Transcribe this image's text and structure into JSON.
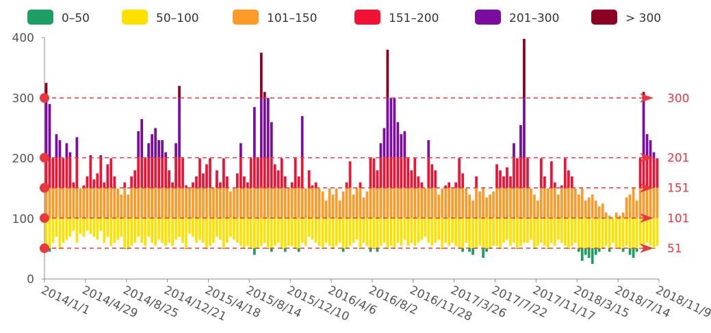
{
  "chart_data": {
    "type": "floating-bar",
    "legend": [
      {
        "name": "0–50",
        "color": "#1e9e62"
      },
      {
        "name": "50–100",
        "color": "#ffe100"
      },
      {
        "name": "101–150",
        "color": "#fe9a28"
      },
      {
        "name": "151–200",
        "color": "#ef1234"
      },
      {
        "name": "201–300",
        "color": "#7a0ca0"
      },
      {
        "name": "> 300",
        "color": "#8b0022"
      }
    ],
    "ref_lines": [
      51,
      101,
      151,
      201,
      300
    ],
    "ref_color": "#e8383d",
    "ylim": [
      0,
      400
    ],
    "yticks": [
      0,
      100,
      200,
      300,
      400
    ],
    "xticks": [
      "2014/1/1",
      "2014/4/29",
      "2014/8/25",
      "2014/12/21",
      "2015/4/18",
      "2015/8/14",
      "2015/12/10",
      "2016/4/6",
      "2016/8/2",
      "2016/11/28",
      "2017/3/26",
      "2017/7/22",
      "2017/11/17",
      "2018/3/15",
      "2018/7/14",
      "2018/11/9"
    ],
    "ranges": [
      [
        55,
        325
      ],
      [
        45,
        290
      ],
      [
        60,
        200
      ],
      [
        70,
        240
      ],
      [
        50,
        230
      ],
      [
        60,
        200
      ],
      [
        65,
        225
      ],
      [
        70,
        210
      ],
      [
        80,
        160
      ],
      [
        60,
        235
      ],
      [
        75,
        150
      ],
      [
        70,
        155
      ],
      [
        80,
        170
      ],
      [
        75,
        205
      ],
      [
        70,
        165
      ],
      [
        65,
        175
      ],
      [
        80,
        205
      ],
      [
        60,
        160
      ],
      [
        70,
        190
      ],
      [
        55,
        200
      ],
      [
        60,
        170
      ],
      [
        65,
        150
      ],
      [
        70,
        140
      ],
      [
        50,
        160
      ],
      [
        50,
        140
      ],
      [
        55,
        170
      ],
      [
        60,
        180
      ],
      [
        70,
        245
      ],
      [
        60,
        265
      ],
      [
        55,
        200
      ],
      [
        70,
        225
      ],
      [
        60,
        240
      ],
      [
        55,
        250
      ],
      [
        65,
        230
      ],
      [
        60,
        230
      ],
      [
        55,
        210
      ],
      [
        60,
        180
      ],
      [
        55,
        160
      ],
      [
        65,
        225
      ],
      [
        70,
        320
      ],
      [
        60,
        200
      ],
      [
        50,
        155
      ],
      [
        75,
        150
      ],
      [
        70,
        160
      ],
      [
        60,
        170
      ],
      [
        65,
        200
      ],
      [
        60,
        175
      ],
      [
        50,
        190
      ],
      [
        55,
        200
      ],
      [
        60,
        150
      ],
      [
        70,
        180
      ],
      [
        65,
        160
      ],
      [
        50,
        200
      ],
      [
        60,
        170
      ],
      [
        70,
        145
      ],
      [
        65,
        150
      ],
      [
        60,
        175
      ],
      [
        55,
        225
      ],
      [
        50,
        170
      ],
      [
        55,
        160
      ],
      [
        50,
        200
      ],
      [
        40,
        285
      ],
      [
        50,
        200
      ],
      [
        55,
        375
      ],
      [
        60,
        310
      ],
      [
        50,
        300
      ],
      [
        45,
        260
      ],
      [
        55,
        190
      ],
      [
        60,
        180
      ],
      [
        50,
        200
      ],
      [
        45,
        170
      ],
      [
        55,
        150
      ],
      [
        55,
        160
      ],
      [
        50,
        200
      ],
      [
        45,
        170
      ],
      [
        60,
        270
      ],
      [
        55,
        150
      ],
      [
        70,
        180
      ],
      [
        65,
        155
      ],
      [
        60,
        160
      ],
      [
        55,
        150
      ],
      [
        50,
        145
      ],
      [
        60,
        130
      ],
      [
        55,
        150
      ],
      [
        50,
        140
      ],
      [
        55,
        150
      ],
      [
        60,
        130
      ],
      [
        45,
        145
      ],
      [
        50,
        160
      ],
      [
        55,
        195
      ],
      [
        60,
        140
      ],
      [
        65,
        150
      ],
      [
        50,
        160
      ],
      [
        60,
        135
      ],
      [
        55,
        145
      ],
      [
        45,
        200
      ],
      [
        50,
        200
      ],
      [
        45,
        180
      ],
      [
        55,
        225
      ],
      [
        60,
        250
      ],
      [
        50,
        380
      ],
      [
        55,
        300
      ],
      [
        50,
        300
      ],
      [
        60,
        260
      ],
      [
        55,
        240
      ],
      [
        65,
        245
      ],
      [
        55,
        200
      ],
      [
        60,
        180
      ],
      [
        55,
        200
      ],
      [
        60,
        170
      ],
      [
        65,
        160
      ],
      [
        70,
        150
      ],
      [
        60,
        230
      ],
      [
        55,
        190
      ],
      [
        60,
        180
      ],
      [
        65,
        140
      ],
      [
        50,
        150
      ],
      [
        60,
        155
      ],
      [
        55,
        160
      ],
      [
        60,
        150
      ],
      [
        55,
        160
      ],
      [
        50,
        200
      ],
      [
        45,
        175
      ],
      [
        60,
        150
      ],
      [
        45,
        140
      ],
      [
        40,
        130
      ],
      [
        50,
        170
      ],
      [
        55,
        145
      ],
      [
        35,
        150
      ],
      [
        45,
        135
      ],
      [
        50,
        140
      ],
      [
        55,
        145
      ],
      [
        55,
        190
      ],
      [
        50,
        180
      ],
      [
        60,
        170
      ],
      [
        65,
        185
      ],
      [
        55,
        170
      ],
      [
        60,
        225
      ],
      [
        50,
        200
      ],
      [
        55,
        255
      ],
      [
        60,
        398
      ],
      [
        60,
        200
      ],
      [
        65,
        150
      ],
      [
        50,
        140
      ],
      [
        55,
        130
      ],
      [
        60,
        200
      ],
      [
        55,
        170
      ],
      [
        50,
        150
      ],
      [
        60,
        195
      ],
      [
        55,
        160
      ],
      [
        65,
        140
      ],
      [
        60,
        155
      ],
      [
        55,
        200
      ],
      [
        50,
        180
      ],
      [
        55,
        170
      ],
      [
        60,
        150
      ],
      [
        45,
        140
      ],
      [
        30,
        150
      ],
      [
        40,
        130
      ],
      [
        35,
        135
      ],
      [
        25,
        140
      ],
      [
        40,
        130
      ],
      [
        45,
        120
      ],
      [
        50,
        125
      ],
      [
        55,
        110
      ],
      [
        45,
        105
      ],
      [
        60,
        100
      ],
      [
        50,
        110
      ],
      [
        50,
        105
      ],
      [
        45,
        110
      ],
      [
        55,
        135
      ],
      [
        40,
        140
      ],
      [
        35,
        150
      ],
      [
        45,
        130
      ],
      [
        55,
        200
      ],
      [
        50,
        310
      ],
      [
        60,
        240
      ],
      [
        55,
        230
      ],
      [
        50,
        210
      ],
      [
        55,
        200
      ]
    ]
  }
}
